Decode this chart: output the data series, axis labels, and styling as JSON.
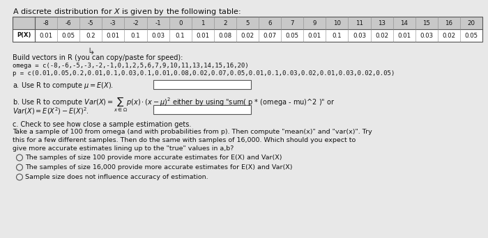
{
  "title": "A discrete distribution for $X$ is given by the following table:",
  "x_values": [
    "-8",
    "-6",
    "-5",
    "-3",
    "-2",
    "-1",
    "0",
    "1",
    "2",
    "5",
    "6",
    "7",
    "9",
    "10",
    "11",
    "13",
    "14",
    "15",
    "16",
    "20"
  ],
  "p_values": [
    "0.01",
    "0.05",
    "0.2",
    "0.01",
    "0.1",
    "0.03",
    "0.1",
    "0.01",
    "0.08",
    "0.02",
    "0.07",
    "0.05",
    "0.01",
    "0.1",
    "0.03",
    "0.02",
    "0.01",
    "0.03",
    "0.02",
    "0.05"
  ],
  "r_code_label": "Build vectors in R (you can copy/paste for speed):",
  "r_omega": "omega = c(-8,-6,-5,-3,-2,-1,0,1,2,5,6,7,9,10,11,13,14,15,16,20)",
  "r_p": "p = c(0.01,0.05,0.2,0.01,0.1,0.03,0.1,0.01,0.08,0.02,0.07,0.05,0.01,0.1,0.03,0.02,0.01,0.03,0.02,0.05)",
  "part_a_label": "a. Use R to compute $\\mu = E(X)$.",
  "part_b_line1": "b. Use R to compute $Var(X) = \\sum_{x \\in \\Omega} p(x) \\cdot (x - \\mu)^2$ either by using \"sum( p * (omega - mu)^2 )\" or",
  "var_formula": "$Var(X) = E(X^2) - E(X)^2$.",
  "part_c_label": "c. Check to see how close a sample estimation gets.",
  "part_c_text": "Take a sample of 100 from omega (and with probabilities from p). Then compute \"mean(x)\" and \"var(x)\". Try\nthis for a few different samples. Then do the same with samples of 16,000. Which should you expect to\ngive more accurate estimates lining up to the \"true\" values in a,b?",
  "option1": "The samples of size 100 provide more accurate estimates for E(X) and Var(X)",
  "option2": "The samples of size 16,000 provide more accurate estimates for E(X) and Var(X)",
  "option3": "Sample size does not influence accuracy of estimation.",
  "bg_color": "#e8e8e8",
  "table_header_bg": "#c8c8c8",
  "table_row_bg": "#ffffff",
  "text_color": "#111111"
}
